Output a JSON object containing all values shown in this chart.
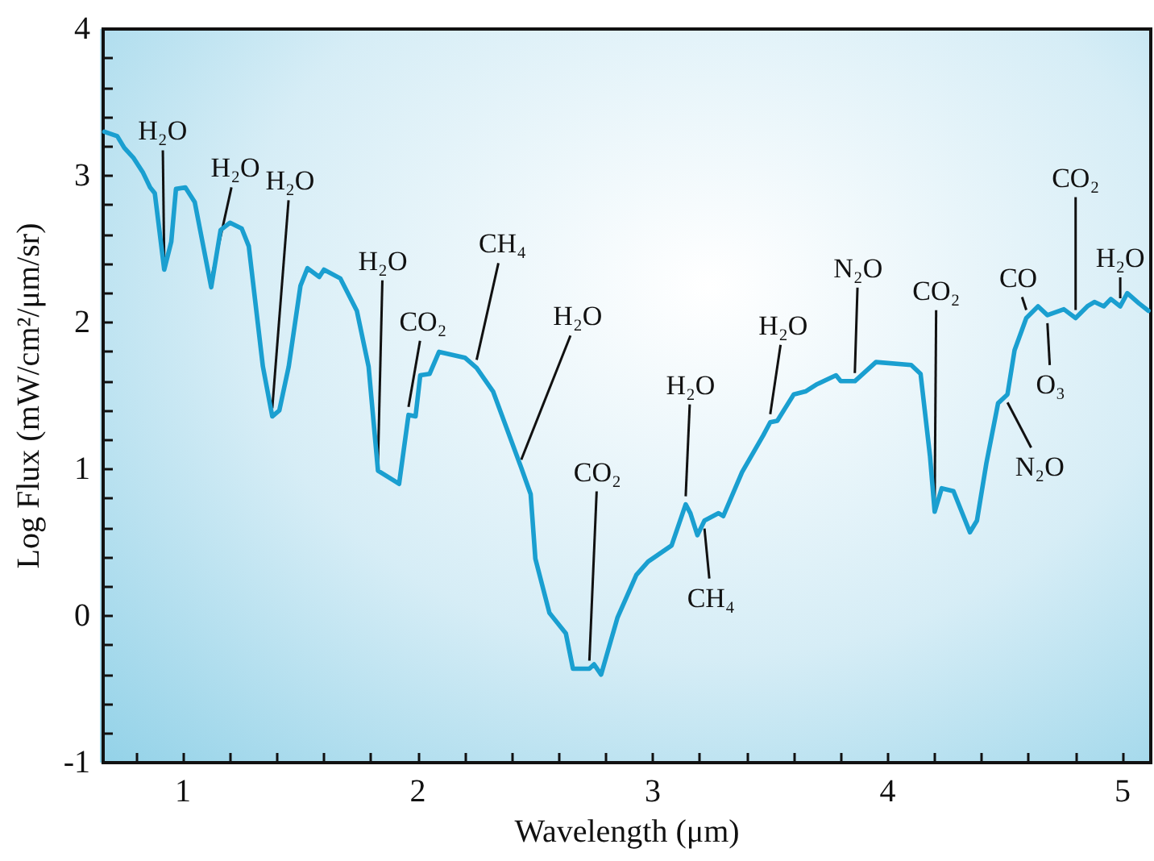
{
  "chart_data": {
    "type": "line",
    "xlabel": "Wavelength (μm)",
    "ylabel": "Log Flux (mW/cm²/μm/sr)",
    "xlim": [
      0.66,
      5.12
    ],
    "ylim": [
      -1,
      4
    ],
    "xticks": [
      {
        "value": 0.8,
        "label": null
      },
      1,
      {
        "value": 1.2,
        "label": null
      },
      {
        "value": 1.4,
        "label": null
      },
      {
        "value": 1.6,
        "label": null
      },
      {
        "value": 1.8,
        "label": null
      },
      2,
      {
        "value": 2.2,
        "label": null
      },
      {
        "value": 2.4,
        "label": null
      },
      {
        "value": 2.6,
        "label": null
      },
      {
        "value": 2.8,
        "label": null
      },
      3,
      {
        "value": 3.2,
        "label": null
      },
      {
        "value": 3.4,
        "label": null
      },
      {
        "value": 3.6,
        "label": null
      },
      {
        "value": 3.8,
        "label": null
      },
      4,
      {
        "value": 4.2,
        "label": null
      },
      {
        "value": 4.4,
        "label": null
      },
      {
        "value": 4.6,
        "label": null
      },
      {
        "value": 4.8,
        "label": null
      },
      5
    ],
    "yticks": [
      -1,
      {
        "value": -0.8,
        "label": null
      },
      {
        "value": -0.6,
        "label": null
      },
      {
        "value": -0.4,
        "label": null
      },
      {
        "value": -0.2,
        "label": null
      },
      0,
      {
        "value": 0.2,
        "label": null
      },
      {
        "value": 0.4,
        "label": null
      },
      {
        "value": 0.6,
        "label": null
      },
      {
        "value": 0.8,
        "label": null
      },
      1,
      {
        "value": 1.2,
        "label": null
      },
      {
        "value": 1.4,
        "label": null
      },
      {
        "value": 1.6,
        "label": null
      },
      {
        "value": 1.8,
        "label": null
      },
      2,
      {
        "value": 2.2,
        "label": null
      },
      {
        "value": 2.4,
        "label": null
      },
      {
        "value": 2.6,
        "label": null
      },
      {
        "value": 2.8,
        "label": null
      },
      3,
      {
        "value": 3.2,
        "label": null
      },
      {
        "value": 3.4,
        "label": null
      },
      {
        "value": 3.6,
        "label": null
      },
      {
        "value": 3.8,
        "label": null
      },
      4
    ],
    "grid": false,
    "marker": "none",
    "line_style": "solid",
    "series": [
      {
        "color": "#1a9fd0",
        "x": [
          0.665,
          0.72,
          0.75,
          0.79,
          0.83,
          0.86,
          0.88,
          0.92,
          0.95,
          0.97,
          1.01,
          1.05,
          1.12,
          1.16,
          1.2,
          1.25,
          1.28,
          1.34,
          1.38,
          1.41,
          1.45,
          1.5,
          1.53,
          1.58,
          1.6,
          1.67,
          1.74,
          1.79,
          1.83,
          1.92,
          1.96,
          1.99,
          2.01,
          2.05,
          2.09,
          2.2,
          2.25,
          2.32,
          2.44,
          2.48,
          2.5,
          2.56,
          2.63,
          2.66,
          2.73,
          2.75,
          2.78,
          2.85,
          2.93,
          2.98,
          3.08,
          3.14,
          3.16,
          3.19,
          3.22,
          3.28,
          3.3,
          3.38,
          3.47,
          3.5,
          3.53,
          3.6,
          3.65,
          3.7,
          3.78,
          3.8,
          3.86,
          3.95,
          4.1,
          4.14,
          4.18,
          4.2,
          4.23,
          4.28,
          4.35,
          4.38,
          4.42,
          4.47,
          4.51,
          4.54,
          4.59,
          4.64,
          4.68,
          4.75,
          4.8,
          4.85,
          4.88,
          4.92,
          4.95,
          4.99,
          5.02,
          5.07,
          5.11
        ],
        "values": [
          3.3,
          3.27,
          3.19,
          3.12,
          3.02,
          2.92,
          2.88,
          2.36,
          2.55,
          2.91,
          2.92,
          2.82,
          2.24,
          2.63,
          2.68,
          2.64,
          2.52,
          1.7,
          1.36,
          1.4,
          1.7,
          2.25,
          2.37,
          2.31,
          2.36,
          2.3,
          2.08,
          1.7,
          0.99,
          0.9,
          1.37,
          1.36,
          1.64,
          1.65,
          1.8,
          1.76,
          1.69,
          1.53,
          1.01,
          0.83,
          0.39,
          0.02,
          -0.12,
          -0.36,
          -0.36,
          -0.33,
          -0.4,
          -0.01,
          0.28,
          0.37,
          0.48,
          0.76,
          0.7,
          0.55,
          0.65,
          0.7,
          0.68,
          0.98,
          1.23,
          1.32,
          1.33,
          1.51,
          1.53,
          1.58,
          1.64,
          1.6,
          1.6,
          1.73,
          1.71,
          1.65,
          1.09,
          0.71,
          0.87,
          0.85,
          0.57,
          0.65,
          1.04,
          1.45,
          1.51,
          1.81,
          2.03,
          2.11,
          2.05,
          2.09,
          2.03,
          2.11,
          2.14,
          2.11,
          2.16,
          2.11,
          2.2,
          2.13,
          2.08
        ]
      }
    ],
    "annotations": [
      {
        "text": "H₂O",
        "x": 0.92,
        "y": 2.36
      },
      {
        "text": "H₂O",
        "x": 1.12,
        "y": 2.24
      },
      {
        "text": "H₂O",
        "x": 1.38,
        "y": 1.36
      },
      {
        "text": "H₂O",
        "x": 1.83,
        "y": 0.99
      },
      {
        "text": "CO₂",
        "x": 1.96,
        "y": 1.37
      },
      {
        "text": "CH₄",
        "x": 2.25,
        "y": 1.69
      },
      {
        "text": "H₂O",
        "x": 2.44,
        "y": 1.01
      },
      {
        "text": "CO₂",
        "x": 2.73,
        "y": -0.36
      },
      {
        "text": "H₂O",
        "x": 3.14,
        "y": 0.76
      },
      {
        "text": "CH₄",
        "x": 3.22,
        "y": 0.65
      },
      {
        "text": "H₂O",
        "x": 3.5,
        "y": 1.32
      },
      {
        "text": "N₂O",
        "x": 3.86,
        "y": 1.6
      },
      {
        "text": "CO₂",
        "x": 4.2,
        "y": 0.71
      },
      {
        "text": "CO",
        "x": 4.59,
        "y": 2.03
      },
      {
        "text": "O₃",
        "x": 4.68,
        "y": 2.05
      },
      {
        "text": "N₂O",
        "x": 4.51,
        "y": 1.51
      },
      {
        "text": "CO₂",
        "x": 4.8,
        "y": 2.03
      },
      {
        "text": "H₂O",
        "x": 4.99,
        "y": 2.11
      }
    ]
  }
}
